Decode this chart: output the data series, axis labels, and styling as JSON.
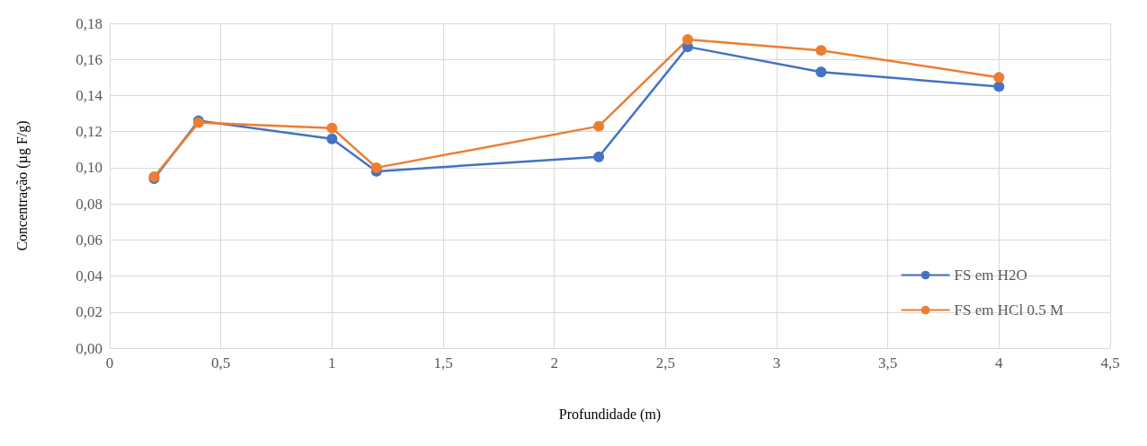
{
  "chart_data": {
    "type": "line",
    "xlabel": "Profundidade (m)",
    "ylabel": "Concentração (µg F/g)",
    "x": [
      0.2,
      0.4,
      1,
      1.2,
      2.2,
      2.6,
      3.2,
      4
    ],
    "series": [
      {
        "name": "FS em H2O",
        "color": "#4472c4",
        "values": [
          0.094,
          0.126,
          0.116,
          0.098,
          0.106,
          0.167,
          0.153,
          0.145
        ]
      },
      {
        "name": "FS em HCl 0.5 M",
        "color": "#ed7d31",
        "values": [
          0.095,
          0.125,
          0.122,
          0.1,
          0.123,
          0.171,
          0.165,
          0.15
        ]
      }
    ],
    "xlim": [
      0,
      4.5
    ],
    "xticks": [
      0,
      {
        "value": 0.5,
        "label": "0,5"
      },
      1,
      {
        "value": 1.5,
        "label": "1,5"
      },
      2,
      {
        "value": 2.5,
        "label": "2,5"
      },
      3,
      {
        "value": 3.5,
        "label": "3,5"
      },
      4,
      {
        "value": 4.5,
        "label": "4,5"
      }
    ],
    "ylim": [
      0,
      0.18
    ],
    "yticks": [
      {
        "value": 0,
        "label": "0,00"
      },
      {
        "value": 0.02,
        "label": "0,02"
      },
      {
        "value": 0.04,
        "label": "0,04"
      },
      {
        "value": 0.06,
        "label": "0,06"
      },
      {
        "value": 0.08,
        "label": "0,08"
      },
      {
        "value": 0.1,
        "label": "0,10"
      },
      {
        "value": 0.12,
        "label": "0,12"
      },
      {
        "value": 0.14,
        "label": "0,14"
      },
      {
        "value": 0.16,
        "label": "0,16"
      },
      {
        "value": 0.18,
        "label": "0,18"
      }
    ],
    "grid": true,
    "legend": "bottom right",
    "marker": "circle",
    "line_style": "solid"
  }
}
